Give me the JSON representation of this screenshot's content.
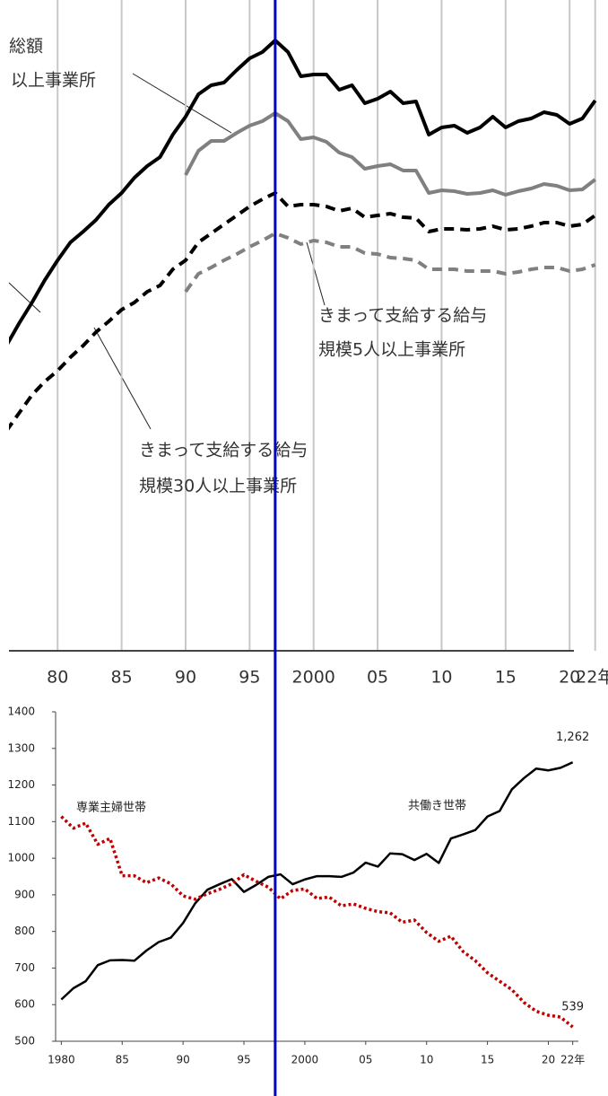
{
  "charts": [
    {
      "type": "line",
      "annotations": [
        "総額",
        "以上事業所",
        "きまって支給する給与",
        "規模5人以上事業所",
        "きまって支給する給与",
        "規模30人以上事業所"
      ],
      "x": [
        1976,
        1977,
        1978,
        1979,
        1980,
        1981,
        1982,
        1983,
        1984,
        1985,
        1986,
        1987,
        1988,
        1989,
        1990,
        1991,
        1992,
        1993,
        1994,
        1995,
        1996,
        1997,
        1998,
        1999,
        2000,
        2001,
        2002,
        2003,
        2004,
        2005,
        2006,
        2007,
        2008,
        2009,
        2010,
        2011,
        2012,
        2013,
        2014,
        2015,
        2016,
        2017,
        2018,
        2019,
        2020,
        2021,
        2022
      ],
      "xlim": [
        1976.2,
        2023
      ],
      "xticks": [
        {
          "value": 1980,
          "label": "80"
        },
        {
          "value": 1985,
          "label": "85"
        },
        {
          "value": 1990,
          "label": "90"
        },
        {
          "value": 1995,
          "label": "95"
        },
        2000,
        {
          "value": 2005,
          "label": "05"
        },
        {
          "value": 2010,
          "label": "10"
        },
        {
          "value": 2015,
          "label": "15"
        },
        {
          "value": 2020,
          "label": "20"
        },
        {
          "value": 2022,
          "label": "22年"
        }
      ],
      "ylim": [
        0,
        725
      ],
      "grid": true,
      "series": [
        {
          "color": "#000000",
          "style": "solid",
          "values": [
            340,
            365,
            388,
            413,
            435,
            455,
            467,
            480,
            497,
            510,
            527,
            540,
            550,
            575,
            595,
            620,
            630,
            633,
            647,
            660,
            667,
            680,
            667,
            640,
            642,
            642,
            625,
            630,
            610,
            615,
            623,
            610,
            612,
            575,
            583,
            585,
            577,
            583,
            595,
            583,
            590,
            593,
            600,
            597,
            587,
            593,
            613
          ]
        },
        {
          "color": "#808080",
          "style": "solid",
          "values": [
            null,
            null,
            null,
            null,
            null,
            null,
            null,
            null,
            null,
            null,
            null,
            null,
            null,
            null,
            530,
            557,
            568,
            568,
            577,
            585,
            590,
            599,
            590,
            570,
            572,
            567,
            555,
            550,
            537,
            540,
            542,
            535,
            535,
            510,
            513,
            512,
            509,
            510,
            513,
            508,
            512,
            515,
            520,
            518,
            513,
            514,
            525
          ]
        },
        {
          "color": "#000000",
          "style": "dashed",
          "values": [
            245,
            265,
            285,
            300,
            312,
            327,
            340,
            355,
            367,
            380,
            388,
            400,
            407,
            425,
            435,
            455,
            465,
            475,
            485,
            495,
            503,
            510,
            495,
            497,
            497,
            495,
            490,
            493,
            483,
            485,
            487,
            483,
            482,
            467,
            470,
            470,
            469,
            470,
            473,
            469,
            470,
            473,
            477,
            477,
            473,
            475,
            485
          ]
        },
        {
          "color": "#808080",
          "style": "dashed",
          "values": [
            null,
            null,
            null,
            null,
            null,
            null,
            null,
            null,
            null,
            null,
            null,
            null,
            null,
            null,
            400,
            420,
            427,
            435,
            442,
            450,
            457,
            465,
            460,
            453,
            457,
            455,
            450,
            450,
            443,
            442,
            438,
            437,
            435,
            425,
            425,
            425,
            423,
            423,
            423,
            420,
            422,
            425,
            427,
            427,
            423,
            425,
            430
          ]
        }
      ]
    },
    {
      "type": "line",
      "x": [
        1980,
        1981,
        1982,
        1983,
        1984,
        1985,
        1986,
        1987,
        1988,
        1989,
        1990,
        1991,
        1992,
        1993,
        1994,
        1995,
        1996,
        1997,
        1998,
        1999,
        2000,
        2001,
        2002,
        2003,
        2004,
        2005,
        2006,
        2007,
        2008,
        2009,
        2010,
        2011,
        2012,
        2013,
        2014,
        2015,
        2016,
        2017,
        2018,
        2019,
        2020,
        2021,
        2022
      ],
      "xlim": [
        1979.9,
        2022.1
      ],
      "xticks": [
        1980,
        {
          "value": 1985,
          "label": "85"
        },
        {
          "value": 1990,
          "label": "90"
        },
        {
          "value": 1995,
          "label": "95"
        },
        2000,
        {
          "value": 2005,
          "label": "05"
        },
        {
          "value": 2010,
          "label": "10"
        },
        {
          "value": 2015,
          "label": "15"
        },
        {
          "value": 2020,
          "label": "20"
        },
        {
          "value": 2022,
          "label": "22年"
        }
      ],
      "ylim": [
        500,
        1400
      ],
      "yticks": [
        500,
        600,
        700,
        800,
        900,
        1000,
        1100,
        1200,
        1300,
        1400
      ],
      "series": [
        {
          "name": "共働き世帯",
          "color": "#000000",
          "style": "solid",
          "values": [
            614,
            645,
            664,
            708,
            721,
            722,
            720,
            748,
            771,
            783,
            823,
            877,
            914,
            929,
            943,
            908,
            927,
            949,
            956,
            929,
            942,
            951,
            951,
            949,
            961,
            988,
            977,
            1013,
            1011,
            995,
            1012,
            987,
            1054,
            1065,
            1077,
            1114,
            1129,
            1188,
            1219,
            1245,
            1240,
            1247,
            1262
          ],
          "value_labels": [
            null,
            null,
            null,
            null,
            null,
            null,
            null,
            null,
            null,
            null,
            null,
            null,
            null,
            null,
            null,
            null,
            null,
            null,
            null,
            null,
            null,
            null,
            null,
            null,
            null,
            null,
            null,
            null,
            null,
            null,
            null,
            null,
            null,
            null,
            null,
            null,
            null,
            null,
            null,
            null,
            null,
            null,
            "1,262"
          ]
        },
        {
          "name": "専業主婦世帯",
          "color": "#c00000",
          "style": "dotted",
          "values": [
            1114,
            1082,
            1096,
            1038,
            1054,
            952,
            952,
            933,
            946,
            930,
            897,
            888,
            903,
            915,
            930,
            955,
            937,
            921,
            889,
            912,
            916,
            890,
            894,
            870,
            875,
            863,
            854,
            851,
            825,
            831,
            797,
            773,
            787,
            745,
            720,
            687,
            664,
            641,
            606,
            582,
            571,
            566,
            539
          ],
          "value_labels": [
            null,
            null,
            null,
            null,
            null,
            null,
            null,
            null,
            null,
            null,
            null,
            null,
            null,
            null,
            null,
            null,
            null,
            null,
            null,
            null,
            null,
            null,
            null,
            null,
            null,
            null,
            null,
            null,
            null,
            null,
            null,
            null,
            null,
            null,
            null,
            null,
            null,
            null,
            null,
            null,
            null,
            null,
            "539"
          ]
        }
      ]
    }
  ],
  "highlight_x": 1997,
  "highlight_color": "#0000c0"
}
